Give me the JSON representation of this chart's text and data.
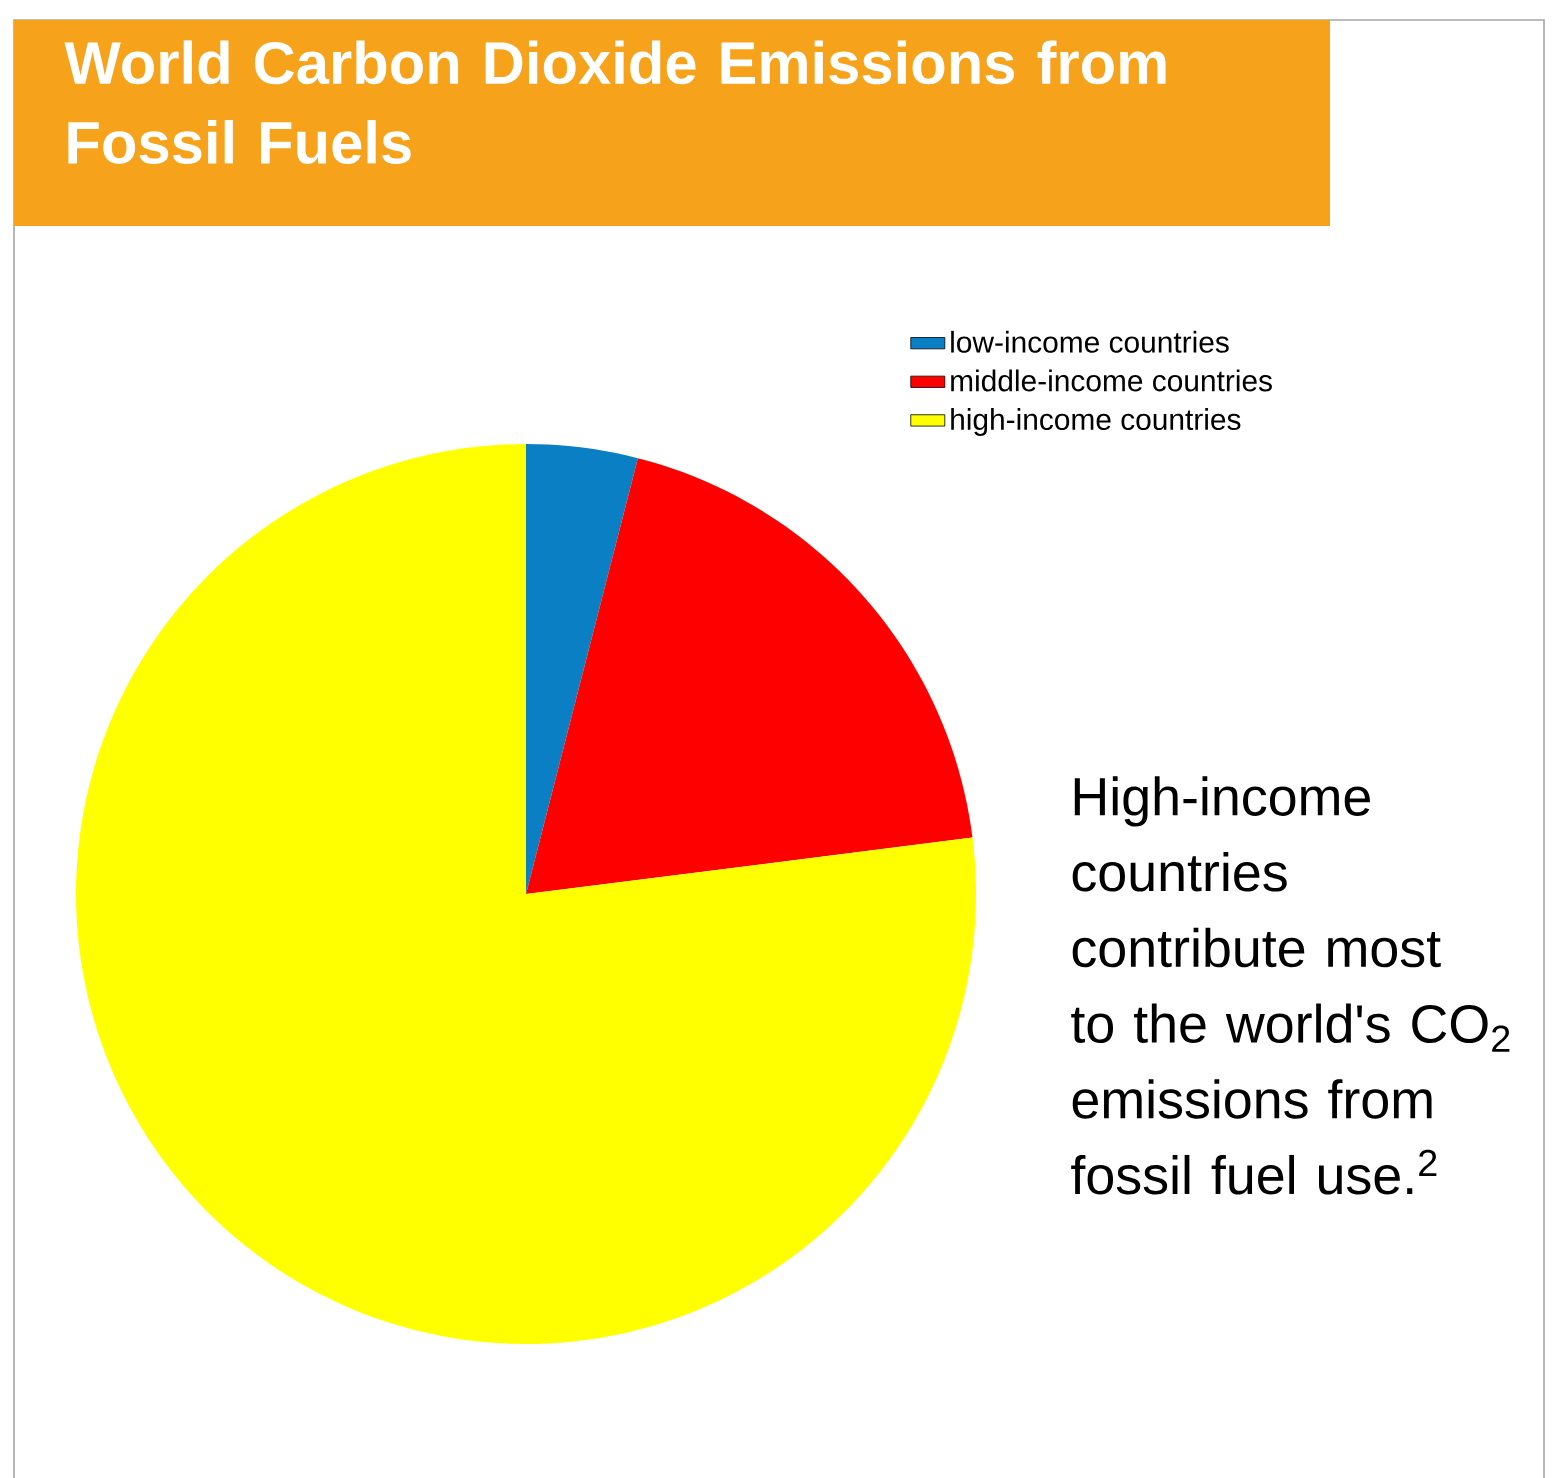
{
  "chart_data": {
    "type": "pie",
    "title": "World Carbon Dioxide Emissions from Fossil Fuels",
    "categories": [
      "low-income countries",
      "middle-income countries",
      "high-income countries"
    ],
    "values": [
      4,
      19,
      77
    ],
    "colors": [
      "#0a7fc4",
      "#ff0000",
      "#ffff00"
    ],
    "legend": "top right",
    "annotations": [
      "High-income countries contribute most to the world's CO$_{2}$ emissions from fossil fuel use.$^{2}$"
    ]
  }
}
